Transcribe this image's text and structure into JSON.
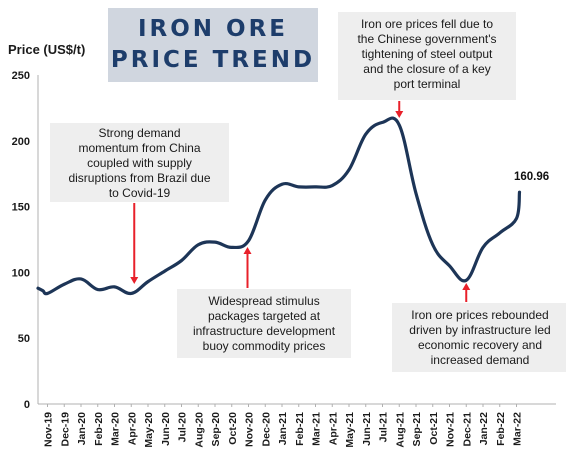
{
  "title_lines": [
    "IRON ORE",
    "PRICE TREND"
  ],
  "chart_data": {
    "type": "line",
    "title": "IRON ORE PRICE TREND",
    "ylabel": "Price (US$/t)",
    "xlabel": "",
    "ylim": [
      0,
      250
    ],
    "yticks": [
      0,
      50,
      100,
      150,
      200,
      250
    ],
    "grid": false,
    "x_tick_labels": [
      "Nov-19",
      "Dec-19",
      "Jan-20",
      "Feb-20",
      "Mar-20",
      "Apr-20",
      "May-20",
      "Jun-20",
      "Jul-20",
      "Aug-20",
      "Sep-20",
      "Oct-20",
      "Nov-20",
      "Dec-20",
      "Jan-21",
      "Feb-21",
      "Mar-21",
      "Apr-21",
      "May-21",
      "Jun-21",
      "Jul-21",
      "Aug-21",
      "Sep-21",
      "Oct-21",
      "Nov-21",
      "Dec-21",
      "Jan-22",
      "Feb-22",
      "Mar-22"
    ],
    "series": [
      {
        "points": [
          [
            "Oct-19",
            88
          ],
          [
            "Oct-19",
            86
          ],
          [
            "Nov-19",
            84
          ],
          [
            "Dec-19",
            91
          ],
          [
            "Jan-20",
            95
          ],
          [
            "Feb-20",
            87
          ],
          [
            "Mar-20",
            89
          ],
          [
            "Apr-20",
            84
          ],
          [
            "May-20",
            93
          ],
          [
            "Jun-20",
            101
          ],
          [
            "Jul-20",
            109
          ],
          [
            "Aug-20",
            121
          ],
          [
            "Sep-20",
            123
          ],
          [
            "Oct-20",
            119
          ],
          [
            "Nov-20",
            124
          ],
          [
            "Dec-20",
            155
          ],
          [
            "Jan-21",
            167
          ],
          [
            "Feb-21",
            165
          ],
          [
            "Mar-21",
            165
          ],
          [
            "Apr-21",
            166
          ],
          [
            "May-21",
            178
          ],
          [
            "Jun-21",
            205
          ],
          [
            "Jul-21",
            214
          ],
          [
            "Aug-21",
            212
          ],
          [
            "Sep-21",
            160
          ],
          [
            "Oct-21",
            121
          ],
          [
            "Nov-21",
            105
          ],
          [
            "Dec-21",
            94
          ],
          [
            "Jan-22",
            119
          ],
          [
            "Feb-22",
            130
          ],
          [
            "Mar-22",
            141
          ],
          [
            "Mar-22",
            160.96
          ]
        ]
      }
    ],
    "last_value_label": "160.96",
    "annotations": [
      {
        "lines": [
          "Strong demand",
          "momentum from China",
          "coupled with supply",
          "disruptions from Brazil due",
          "to Covid-19"
        ],
        "arrow_at": "Apr-20"
      },
      {
        "lines": [
          "Widespread stimulus",
          "packages targeted at",
          "infrastructure development",
          "buoy commodity prices"
        ],
        "arrow_at": "Nov-20"
      },
      {
        "lines": [
          "Iron ore prices fell due to",
          "the Chinese government's",
          "tightening of steel output",
          "and the closure of a key",
          "port terminal"
        ],
        "arrow_at": "Aug-21"
      },
      {
        "lines": [
          "Iron ore prices rebounded",
          "driven by infrastructure led",
          "economic recovery and",
          "increased demand"
        ],
        "arrow_at": "Dec-21"
      }
    ],
    "colors": {
      "line": "#1d3557",
      "arrow": "#e8202a",
      "note_bg": "#eeeeee",
      "title_bg": "#d0d6df",
      "title_text": "#1d3d6b"
    }
  }
}
